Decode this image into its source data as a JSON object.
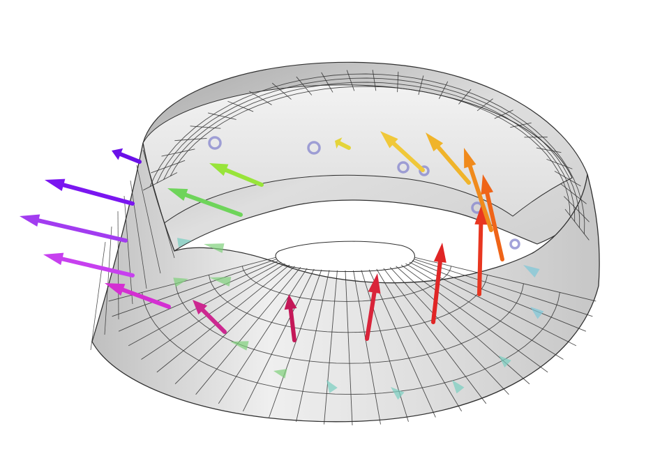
{
  "figure": {
    "kind": "mobius-strip-normal-vectors",
    "surface": {
      "fill": "#e4e4e4",
      "fill_light": "#f3f3f3",
      "fill_dark": "#a9a9a9",
      "mesh_color": "#2f2f2f"
    },
    "arrow_colors": [
      "#6a10e8",
      "#7a16f0",
      "#a23cf0",
      "#c740ef",
      "#d42fd2",
      "#cc2890",
      "#c41858",
      "#d9243a",
      "#e02525",
      "#e83620",
      "#ef6418",
      "#f08a1c",
      "#f0b42a",
      "#f0c83a",
      "#e4d43a",
      "#98e43a",
      "#6ed45a"
    ],
    "hidden_arrow_colors": [
      "#8484ce",
      "#7fd07a",
      "#79cfc0",
      "#7cc7d8"
    ]
  }
}
